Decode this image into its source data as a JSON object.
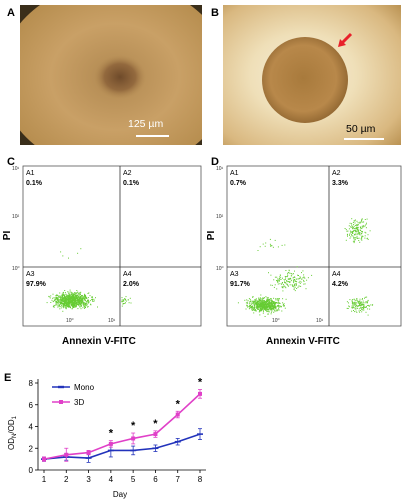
{
  "panels": {
    "A": {
      "letter": "A",
      "scale_label": "125 µm"
    },
    "B": {
      "letter": "B",
      "scale_label": "50 µm"
    },
    "C": {
      "letter": "C",
      "quadrants": [
        {
          "name": "A1",
          "pct": "0.1%"
        },
        {
          "name": "A2",
          "pct": "0.1%"
        },
        {
          "name": "A3",
          "pct": "97.9%"
        },
        {
          "name": "A4",
          "pct": "2.0%"
        }
      ],
      "ylabel": "PI",
      "xlabel": "Annexin V-FITC",
      "xticks": [
        "10⁰",
        "10¹"
      ],
      "yticks": [
        "10¹",
        "10²",
        "10⁰"
      ]
    },
    "D": {
      "letter": "D",
      "quadrants": [
        {
          "name": "A1",
          "pct": "0.7%"
        },
        {
          "name": "A2",
          "pct": "3.3%"
        },
        {
          "name": "A3",
          "pct": "91.7%"
        },
        {
          "name": "A4",
          "pct": "4.2%"
        }
      ],
      "ylabel": "PI",
      "xlabel": "Annexin V-FITC",
      "xticks": [
        "10⁰",
        "10¹"
      ],
      "yticks": [
        "10¹",
        "10²",
        "10⁰"
      ]
    },
    "E": {
      "letter": "E"
    }
  },
  "colors": {
    "dots": "#66cc33",
    "mono": "#2233bb",
    "three_d": "#e040c8",
    "arrow": "#e8202a"
  },
  "chart_data": {
    "type": "line",
    "x": [
      1,
      2,
      3,
      4,
      5,
      6,
      7,
      8
    ],
    "xlabel": "Day",
    "ylabel": "OD_N/OD_1",
    "ylim": [
      0,
      8
    ],
    "yticks": [
      0,
      2,
      4,
      6,
      8
    ],
    "grid": false,
    "legend_position": "top-left",
    "series": [
      {
        "name": "Mono",
        "color": "#2233bb",
        "values": [
          1.0,
          1.2,
          1.1,
          1.8,
          1.8,
          2.0,
          2.6,
          3.3
        ],
        "errors": [
          0.2,
          0.3,
          0.4,
          0.6,
          0.4,
          0.3,
          0.3,
          0.5
        ]
      },
      {
        "name": "3D",
        "color": "#e040c8",
        "values": [
          1.0,
          1.4,
          1.6,
          2.4,
          2.9,
          3.3,
          5.1,
          7.0
        ],
        "errors": [
          0.2,
          0.6,
          0.2,
          0.3,
          0.5,
          0.3,
          0.3,
          0.4
        ]
      }
    ],
    "significance": {
      "marker": "*",
      "days": [
        4,
        5,
        6,
        7,
        8
      ]
    }
  }
}
